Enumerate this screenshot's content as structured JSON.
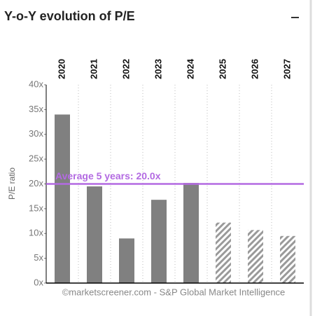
{
  "chart_data": {
    "type": "bar",
    "title": "Y-o-Y evolution of P/E",
    "y_label": "P/E ratio",
    "categories": [
      "2020",
      "2021",
      "2022",
      "2023",
      "2024",
      "2025",
      "2026",
      "2027"
    ],
    "values": [
      34,
      19.5,
      9,
      16.8,
      20.2,
      12.2,
      10.7,
      9.5
    ],
    "hatched": [
      false,
      false,
      false,
      false,
      false,
      true,
      true,
      true
    ],
    "color": "#808080",
    "ylim": [
      0,
      40
    ],
    "yticks": [
      {
        "value": 0,
        "label": "0x"
      },
      {
        "value": 5,
        "label": "5x"
      },
      {
        "value": 10,
        "label": "10x"
      },
      {
        "value": 15,
        "label": "15x"
      },
      {
        "value": 20,
        "label": "20x"
      },
      {
        "value": 25,
        "label": "25x"
      },
      {
        "value": 30,
        "label": "30x"
      },
      {
        "value": 35,
        "label": "35x"
      },
      {
        "value": 40,
        "label": "40x"
      }
    ],
    "average": {
      "value": 20,
      "label": "Average 5 years: 20.0x",
      "color": "#b36ae2"
    },
    "source": "©marketscreener.com - S&P Global Market Intelligence"
  }
}
